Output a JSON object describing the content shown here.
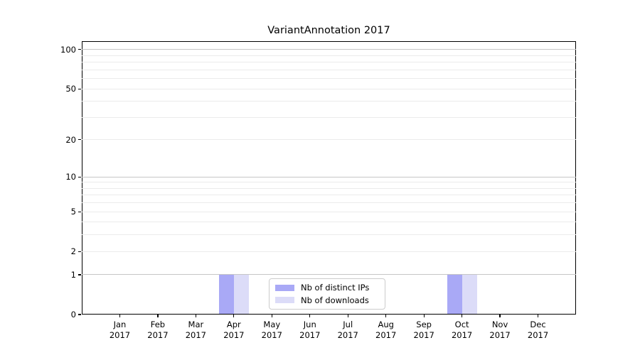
{
  "chart_data": {
    "type": "bar",
    "title": "VariantAnnotation 2017",
    "categories": [
      {
        "label": "Jan",
        "sub": "2017"
      },
      {
        "label": "Feb",
        "sub": "2017"
      },
      {
        "label": "Mar",
        "sub": "2017"
      },
      {
        "label": "Apr",
        "sub": "2017"
      },
      {
        "label": "May",
        "sub": "2017"
      },
      {
        "label": "Jun",
        "sub": "2017"
      },
      {
        "label": "Jul",
        "sub": "2017"
      },
      {
        "label": "Aug",
        "sub": "2017"
      },
      {
        "label": "Sep",
        "sub": "2017"
      },
      {
        "label": "Oct",
        "sub": "2017"
      },
      {
        "label": "Nov",
        "sub": "2017"
      },
      {
        "label": "Dec",
        "sub": "2017"
      }
    ],
    "series": [
      {
        "name": "Nb of distinct IPs",
        "color": "#a9a9f6",
        "values": [
          0,
          0,
          0,
          1,
          0,
          0,
          0,
          0,
          0,
          1,
          0,
          0
        ]
      },
      {
        "name": "Nb of downloads",
        "color": "#dcdcf8",
        "values": [
          0,
          0,
          0,
          1,
          0,
          0,
          0,
          0,
          0,
          1,
          0,
          0
        ]
      }
    ],
    "yscale": "log1p",
    "ylim": [
      0,
      116
    ],
    "yticks": [
      0,
      1,
      2,
      5,
      10,
      20,
      50,
      100
    ],
    "major_gridlines": [
      1,
      10,
      100
    ],
    "minor_gridlines": [
      2,
      3,
      4,
      5,
      6,
      7,
      8,
      9,
      20,
      30,
      40,
      50,
      60,
      70,
      80,
      90
    ],
    "grid": true,
    "legend_position": "lower center",
    "colors": {
      "spine": "#000000",
      "major_grid": "#c6c6c6",
      "minor_grid": "#ebebeb",
      "legend_border": "#cccccc",
      "background": "#ffffff"
    }
  }
}
